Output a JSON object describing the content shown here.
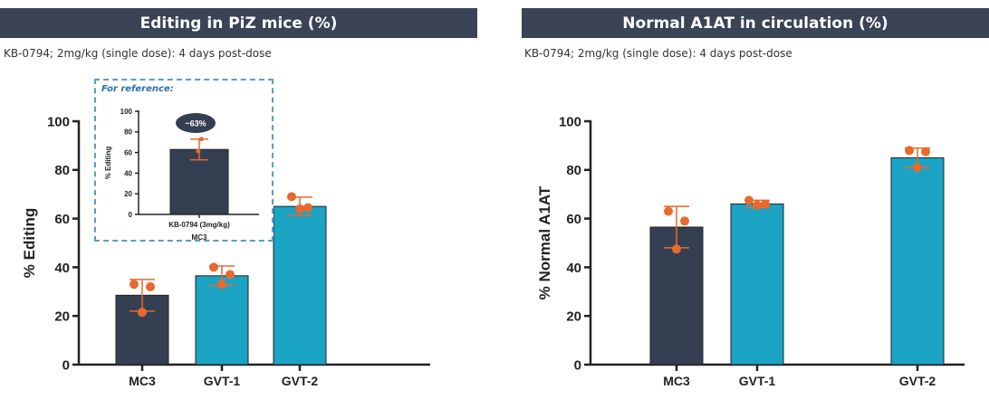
{
  "left_panel": {
    "banner": "Editing in PiZ mice (%)",
    "subtitle": "KB-0794; 2mg/kg (single dose): 4 days post-dose",
    "inset_title": "For reference:",
    "inset_annotation": "~63%"
  },
  "right_panel": {
    "banner": "Normal A1AT in circulation (%)",
    "subtitle": "KB-0794; 2mg/kg (single dose): 4 days post-dose"
  },
  "colors": {
    "banner": "#3b4356",
    "mc3_bar": "#353f52",
    "gvt_bar": "#1ba3c4",
    "points": "#e8692e",
    "inset_border": "#5b9bc8"
  },
  "chart_data": [
    {
      "type": "bar",
      "panel": "left",
      "categories": [
        "MC3",
        "GVT-1",
        "GVT-2"
      ],
      "values": [
        28.5,
        36.5,
        65
      ],
      "error": [
        6.5,
        4,
        3.8
      ],
      "points": [
        [
          33,
          32,
          21.5
        ],
        [
          40,
          37,
          33
        ],
        [
          69,
          64.5,
          64
        ]
      ],
      "bar_colors": [
        "#353f52",
        "#1ba3c4",
        "#1ba3c4"
      ],
      "ylabel": "% Editing",
      "ylim": [
        0,
        100
      ],
      "yticks": [
        0,
        20,
        40,
        60,
        80,
        100
      ]
    },
    {
      "type": "bar",
      "panel": "right",
      "categories": [
        "MC3",
        "GVT-1",
        "GVT-2"
      ],
      "values": [
        56.5,
        66,
        85
      ],
      "error": [
        8.5,
        1.5,
        4
      ],
      "points": [
        [
          63,
          59,
          47.5
        ],
        [
          67.5,
          66,
          65.5
        ],
        [
          88,
          87.5,
          81
        ]
      ],
      "bar_colors": [
        "#353f52",
        "#1ba3c4",
        "#1ba3c4"
      ],
      "ylabel": "% Normal A1AT",
      "ylim": [
        0,
        100
      ],
      "yticks": [
        0,
        20,
        40,
        60,
        80,
        100
      ]
    },
    {
      "type": "bar",
      "panel": "left-inset",
      "categories": [
        "KB-0794 (3mg/kg)"
      ],
      "category_sublabel": "MC3",
      "values": [
        63
      ],
      "error": [
        10
      ],
      "points": [
        [
          73,
          61.5
        ]
      ],
      "bar_colors": [
        "#353f52"
      ],
      "ylabel": "% Editing",
      "ylim": [
        0,
        100
      ],
      "yticks": [
        0,
        20,
        40,
        60,
        80,
        100
      ]
    }
  ]
}
